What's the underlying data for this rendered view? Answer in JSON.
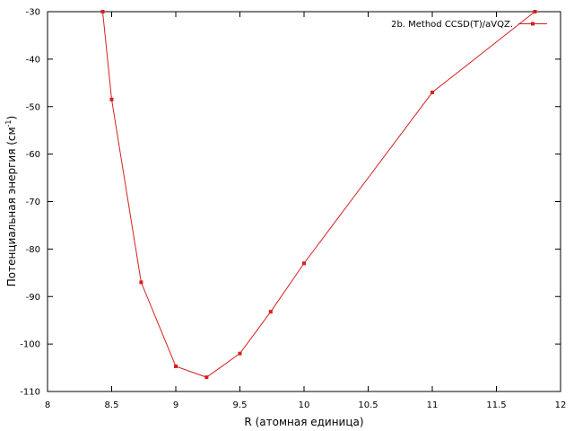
{
  "chart_data": {
    "type": "line",
    "xlabel": "R (атомная единица)",
    "ylabel": {
      "prefix": "Потенциальная энергия (см",
      "superscript": "-1",
      "suffix": ")"
    },
    "xlim": [
      8,
      12
    ],
    "ylim": [
      -110,
      -30
    ],
    "x_ticks": [
      8,
      8.5,
      9,
      9.5,
      10,
      10.5,
      11,
      11.5,
      12
    ],
    "x_tick_labels": [
      "8",
      "8.5",
      "9",
      "9.5",
      "10",
      "10.5",
      "11",
      "11.5",
      "12"
    ],
    "y_ticks": [
      -30,
      -40,
      -50,
      -60,
      -70,
      -80,
      -90,
      -100,
      -110
    ],
    "y_tick_labels": [
      "-30",
      "-40",
      "-50",
      "-60",
      "-70",
      "-80",
      "-90",
      "-100",
      "-110"
    ],
    "grid": false,
    "legend_position": "top-right",
    "series": [
      {
        "name": "2b. Method CCSD(T)/aVQZ.",
        "color": "#d42020",
        "marker": "square",
        "x": [
          8.43,
          8.5,
          8.73,
          9.0,
          9.24,
          9.5,
          9.74,
          10.0,
          11.0,
          11.8
        ],
        "y": [
          -30,
          -48.5,
          -87.0,
          -104.7,
          -107.0,
          -102.0,
          -93.2,
          -83.0,
          -47.0,
          -30
        ]
      }
    ]
  }
}
